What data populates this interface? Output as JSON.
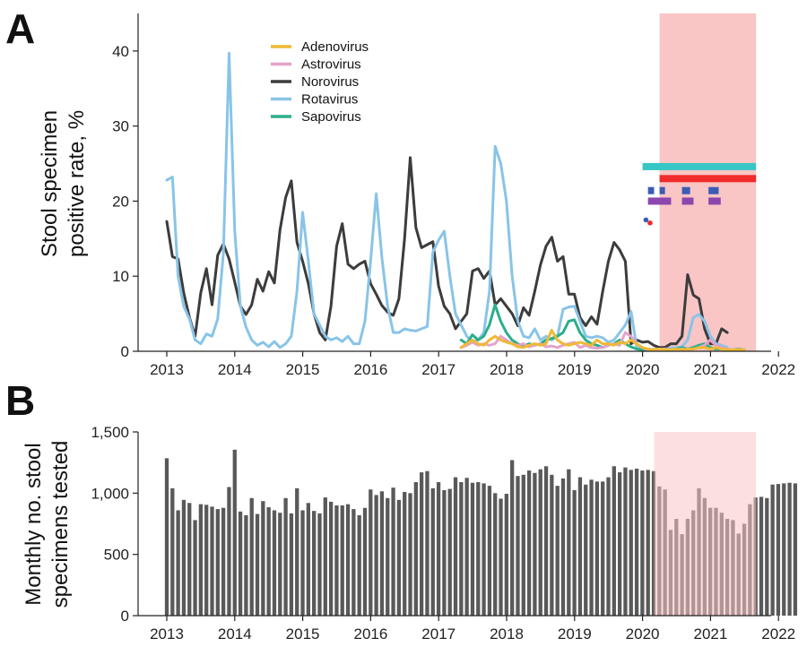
{
  "chart_data": [
    {
      "panel": "A",
      "type": "line",
      "ylabel": [
        "Stool specimen",
        "positive rate, %"
      ],
      "xlim": [
        2013,
        2022
      ],
      "ylim": [
        0,
        45
      ],
      "x_ticks": [
        "2013",
        "2014",
        "2015",
        "2016",
        "2017",
        "2018",
        "2019",
        "2020",
        "2021",
        "2022"
      ],
      "y_ticks": [
        "0",
        "10",
        "20",
        "30",
        "40"
      ],
      "shaded_period": [
        2020.25,
        2021.67
      ],
      "shade_color": "#f9c5c5",
      "series": [
        {
          "name": "Norovirus",
          "color": "#3c3c3c",
          "start": 2013.0,
          "step": 0.0833,
          "values": [
            17.3,
            12.6,
            12.3,
            7.8,
            4.5,
            2.0,
            7.8,
            11.0,
            6.2,
            12.8,
            14.3,
            12.3,
            9.2,
            6.0,
            4.9,
            6.2,
            9.6,
            8.0,
            10.6,
            9.1,
            16.2,
            20.5,
            22.7,
            14.5,
            12.0,
            9.0,
            5.0,
            2.5,
            1.5,
            6.0,
            14.0,
            17.0,
            11.6,
            11.0,
            11.6,
            12.0,
            9.0,
            7.6,
            6.1,
            5.2,
            4.8,
            7.0,
            15.0,
            25.8,
            16.5,
            13.8,
            14.2,
            14.6,
            8.7,
            6.0,
            5.0,
            3.0,
            4.0,
            5.0,
            10.7,
            11.0,
            9.7,
            10.7,
            6.2,
            7.0,
            6.0,
            5.0,
            3.4,
            5.8,
            4.8,
            8.0,
            11.5,
            14.0,
            15.2,
            12.0,
            12.6,
            7.6,
            7.6,
            4.5,
            3.4,
            4.6,
            3.6,
            8.0,
            12.0,
            14.5,
            13.5,
            12.0,
            1.0,
            1.5,
            1.2,
            1.3,
            0.8,
            0.5,
            0.5,
            1.0,
            1.0,
            2.0,
            10.2,
            7.5,
            7.0,
            3.0,
            1.0,
            1.0,
            3.0,
            2.5
          ]
        },
        {
          "name": "Rotavirus",
          "color": "#89c4e8",
          "start": 2013.0,
          "step": 0.0833,
          "values": [
            22.8,
            23.2,
            10.0,
            6.0,
            4.3,
            1.5,
            1.0,
            2.3,
            2.0,
            4.3,
            13.0,
            39.7,
            16.0,
            6.0,
            3.2,
            1.5,
            0.8,
            1.2,
            0.6,
            1.3,
            0.5,
            1.0,
            2.0,
            8.0,
            18.5,
            12.0,
            5.0,
            3.5,
            2.0,
            1.5,
            1.8,
            1.3,
            2.0,
            1.0,
            1.0,
            4.0,
            12.0,
            21.0,
            12.5,
            6.0,
            2.5,
            2.5,
            3.0,
            2.8,
            2.7,
            3.0,
            3.3,
            13.2,
            14.8,
            16.0,
            10.0,
            5.0,
            3.5,
            2.0,
            1.2,
            1.5,
            2.5,
            8.0,
            27.3,
            25.0,
            20.0,
            10.0,
            4.0,
            2.0,
            1.8,
            3.0,
            1.5,
            2.0,
            1.5,
            2.0,
            5.6,
            5.9,
            6.0,
            4.0,
            2.0,
            1.8,
            2.0,
            1.8,
            1.2,
            1.5,
            2.5,
            3.5,
            5.3,
            0.5,
            0.3,
            0.2,
            0.2,
            0.3,
            0.3,
            0.4,
            0.5,
            0.6,
            1.5,
            4.5,
            4.9,
            4.0,
            2.0,
            1.0,
            0.8,
            0.5
          ]
        },
        {
          "name": "Sapovirus",
          "color": "#2bae8c",
          "start": 2017.33,
          "step": 0.0833,
          "values": [
            1.5,
            1.0,
            2.2,
            1.5,
            2.0,
            3.5,
            6.2,
            4.0,
            2.5,
            1.5,
            1.0,
            0.7,
            1.0,
            0.8,
            1.0,
            1.5,
            1.7,
            2.0,
            2.5,
            4.0,
            4.2,
            2.5,
            1.5,
            1.0,
            0.8,
            0.5,
            0.8,
            1.0,
            1.5,
            1.0,
            0.6,
            0.3,
            0.2,
            0.3,
            0.2,
            0.2,
            0.3,
            0.2,
            0.3,
            0.5,
            0.3,
            0.5,
            0.8,
            1.0,
            0.5,
            0.3,
            0.3,
            0.2,
            0.2,
            0.3,
            0.2
          ]
        },
        {
          "name": "Astrovirus",
          "color": "#e5a2cb",
          "start": 2017.33,
          "step": 0.0833,
          "values": [
            0.5,
            0.8,
            1.2,
            0.8,
            1.0,
            0.8,
            1.0,
            2.0,
            1.5,
            1.0,
            0.8,
            1.0,
            0.6,
            0.8,
            1.0,
            0.6,
            0.7,
            0.5,
            0.8,
            1.0,
            1.2,
            0.5,
            0.8,
            0.5,
            0.4,
            0.5,
            0.8,
            1.0,
            0.8,
            2.5,
            2.0,
            1.0,
            0.5,
            0.2,
            0.3,
            0.2,
            0.3,
            0.2,
            0.2,
            0.3,
            0.2,
            0.3,
            0.5,
            0.8,
            1.5,
            0.8,
            0.5,
            0.3,
            0.2,
            0.2,
            0.2
          ]
        },
        {
          "name": "Adenovirus",
          "color": "#efb934",
          "start": 2017.33,
          "step": 0.0833,
          "values": [
            0.5,
            1.0,
            1.5,
            1.0,
            0.8,
            1.5,
            2.0,
            1.5,
            1.2,
            1.0,
            0.6,
            0.5,
            0.8,
            1.0,
            0.8,
            1.0,
            2.8,
            1.5,
            1.0,
            0.8,
            1.0,
            1.2,
            1.0,
            0.8,
            1.5,
            1.0,
            1.0,
            0.8,
            1.2,
            1.0,
            1.5,
            1.0,
            0.5,
            0.3,
            0.2,
            0.3,
            0.2,
            0.2,
            0.3,
            0.2,
            0.3,
            0.3,
            0.5,
            0.5,
            0.3,
            0.5,
            0.3,
            0.2,
            0.2,
            0.2,
            0.2
          ]
        }
      ],
      "legend_order": [
        "Adenovirus",
        "Astrovirus",
        "Norovirus",
        "Rotavirus",
        "Sapovirus"
      ],
      "intervention_bars": [
        {
          "color": "#36c6c6",
          "y": 24.6,
          "segments": [
            [
              2020.0,
              2021.67
            ]
          ]
        },
        {
          "color": "#ef2b2b",
          "y": 23.0,
          "segments": [
            [
              2020.25,
              2021.67
            ]
          ]
        },
        {
          "color": "#3c5cb4",
          "y": 21.4,
          "segments": [
            [
              2020.08,
              2020.17
            ],
            [
              2020.25,
              2020.33
            ],
            [
              2020.58,
              2020.7
            ],
            [
              2020.97,
              2021.12
            ]
          ]
        },
        {
          "color": "#8b47ad",
          "y": 20.0,
          "segments": [
            [
              2020.08,
              2020.42
            ],
            [
              2020.58,
              2020.75
            ],
            [
              2020.97,
              2021.15
            ]
          ]
        }
      ],
      "intervention_dots": [
        {
          "color": "#3c5cb4",
          "x": 2020.05,
          "y": 17.5
        },
        {
          "color": "#ef2b2b",
          "x": 2020.11,
          "y": 17.1
        }
      ]
    },
    {
      "panel": "B",
      "type": "bar",
      "ylabel": [
        "Monthly no. stool",
        "specimens tested"
      ],
      "xlim": [
        2013,
        2022
      ],
      "ylim": [
        0,
        1500
      ],
      "x_ticks": [
        "2013",
        "2014",
        "2015",
        "2016",
        "2017",
        "2018",
        "2019",
        "2020",
        "2021",
        "2022"
      ],
      "y_ticks": [
        "0",
        "500",
        "1,000",
        "1,500"
      ],
      "shaded_period": [
        2020.17,
        2021.67
      ],
      "shade_color": "#f9c5c5",
      "bar_color": "#595959",
      "start": 2013.0,
      "step": 0.0833,
      "values": [
        1285,
        1040,
        860,
        945,
        920,
        780,
        910,
        905,
        890,
        870,
        880,
        1050,
        1355,
        850,
        820,
        960,
        830,
        935,
        885,
        860,
        840,
        960,
        835,
        1040,
        860,
        920,
        855,
        835,
        965,
        930,
        900,
        900,
        910,
        870,
        820,
        880,
        1030,
        985,
        1015,
        960,
        1045,
        945,
        1010,
        1000,
        1090,
        1170,
        1180,
        1040,
        1090,
        1025,
        1035,
        1130,
        1090,
        1125,
        1085,
        1090,
        1080,
        1060,
        1000,
        955,
        995,
        1270,
        1140,
        1150,
        1185,
        1165,
        1195,
        1220,
        1150,
        1060,
        1120,
        1195,
        1025,
        1130,
        1070,
        1110,
        1095,
        1095,
        1130,
        1220,
        1170,
        1210,
        1190,
        1200,
        1185,
        1190,
        1180,
        1055,
        1030,
        700,
        790,
        665,
        790,
        860,
        1040,
        960,
        880,
        880,
        840,
        790,
        780,
        670,
        750,
        910,
        965,
        970,
        960,
        1070,
        1075,
        1080,
        1085,
        1080
      ]
    }
  ]
}
